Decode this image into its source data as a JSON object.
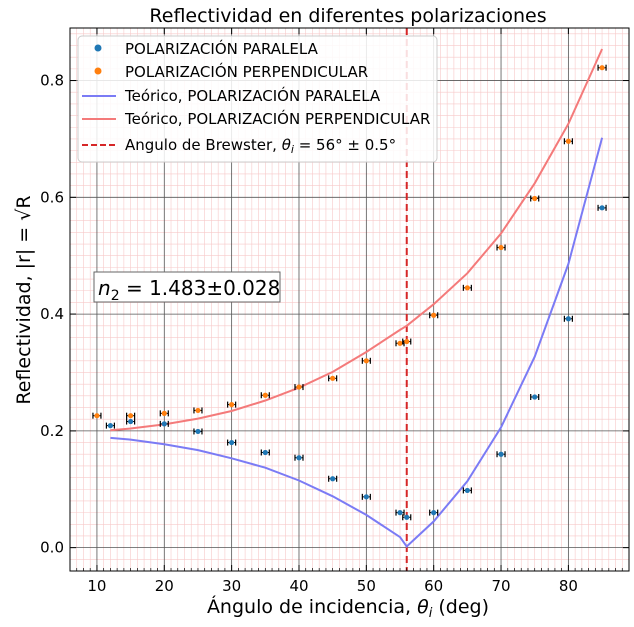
{
  "chart_data": {
    "type": "scatter",
    "title": "Reflectividad en diferentes polarizaciones",
    "xlabel_main": "Ángulo de incidencia, ",
    "xlabel_symbol": "θ",
    "xlabel_sub": "i",
    "xlabel_unit": " (deg)",
    "ylabel": "Reflectividad, |r| = √R",
    "xlim": [
      6,
      89
    ],
    "ylim": [
      -0.04,
      0.89
    ],
    "xticks": [
      10,
      20,
      30,
      40,
      50,
      60,
      70,
      80
    ],
    "yticks": [
      0.0,
      0.2,
      0.4,
      0.6,
      0.8
    ],
    "grid": true,
    "legend_position": "upper-left",
    "annotation": {
      "n_label": "n",
      "n_sub": "2",
      "n_value": " = 1.483±0.028"
    },
    "series": [
      {
        "name": "POLARIZACIÓN PARALELA",
        "kind": "points",
        "color": "#1f77b4",
        "x": [
          12,
          15,
          20,
          25,
          30,
          35,
          40,
          45,
          50,
          55,
          56,
          60,
          65,
          70,
          75,
          80,
          85
        ],
        "y": [
          0.209,
          0.216,
          0.212,
          0.199,
          0.18,
          0.163,
          0.154,
          0.118,
          0.087,
          0.06,
          0.052,
          0.06,
          0.098,
          0.16,
          0.258,
          0.392,
          0.582
        ]
      },
      {
        "name": "POLARIZACIÓN PERPENDICULAR",
        "kind": "points",
        "color": "#ff7f0e",
        "x": [
          10,
          15,
          20,
          25,
          30,
          35,
          40,
          45,
          50,
          55,
          56,
          60,
          65,
          70,
          75,
          80,
          85
        ],
        "y": [
          0.226,
          0.226,
          0.23,
          0.235,
          0.245,
          0.261,
          0.275,
          0.29,
          0.32,
          0.35,
          0.353,
          0.398,
          0.445,
          0.514,
          0.598,
          0.696,
          0.822
        ]
      },
      {
        "name": "Teórico, POLARIZACIÓN PARALELA",
        "kind": "line",
        "color": "#7b7bf5",
        "x": [
          12,
          15,
          20,
          25,
          30,
          35,
          40,
          45,
          50,
          55,
          56,
          60,
          65,
          70,
          75,
          80,
          85
        ],
        "y": [
          0.188,
          0.185,
          0.177,
          0.167,
          0.153,
          0.137,
          0.115,
          0.088,
          0.056,
          0.018,
          0.002,
          0.045,
          0.114,
          0.206,
          0.327,
          0.486,
          0.702
        ]
      },
      {
        "name": "Teórico, POLARIZACIÓN PERPENDICULAR",
        "kind": "line",
        "color": "#f47a7a",
        "x": [
          12,
          15,
          20,
          25,
          30,
          35,
          40,
          45,
          50,
          55,
          56,
          60,
          65,
          70,
          75,
          80,
          85
        ],
        "y": [
          0.201,
          0.204,
          0.211,
          0.221,
          0.234,
          0.252,
          0.274,
          0.301,
          0.335,
          0.373,
          0.38,
          0.417,
          0.47,
          0.538,
          0.624,
          0.726,
          0.854
        ]
      }
    ],
    "brewster": {
      "x": 56,
      "color": "#d62728",
      "legend_prefix": "Angulo de Brewster, ",
      "legend_symbol": "θ",
      "legend_sub": "i",
      "legend_value": " = 56° ± 0.5°"
    }
  }
}
